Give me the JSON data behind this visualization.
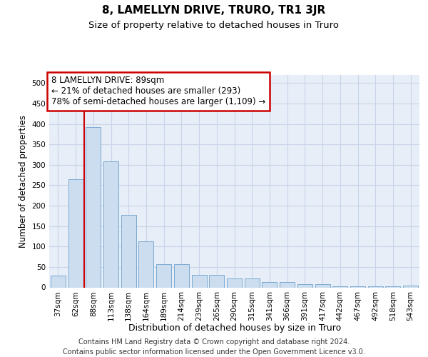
{
  "title": "8, LAMELLYN DRIVE, TRURO, TR1 3JR",
  "subtitle": "Size of property relative to detached houses in Truro",
  "xlabel": "Distribution of detached houses by size in Truro",
  "ylabel": "Number of detached properties",
  "categories": [
    "37sqm",
    "62sqm",
    "88sqm",
    "113sqm",
    "138sqm",
    "164sqm",
    "189sqm",
    "214sqm",
    "239sqm",
    "265sqm",
    "290sqm",
    "315sqm",
    "341sqm",
    "366sqm",
    "391sqm",
    "417sqm",
    "442sqm",
    "467sqm",
    "492sqm",
    "518sqm",
    "543sqm"
  ],
  "values": [
    28,
    265,
    393,
    308,
    178,
    113,
    57,
    57,
    30,
    30,
    22,
    22,
    13,
    13,
    7,
    7,
    3,
    3,
    2,
    2,
    4
  ],
  "bar_color": "#ccddf0",
  "bar_edge_color": "#7aaad0",
  "grid_color": "#c8d4e8",
  "background_color": "#e8eef8",
  "vline_x": 1.5,
  "annotation_text": "8 LAMELLYN DRIVE: 89sqm\n← 21% of detached houses are smaller (293)\n78% of semi-detached houses are larger (1,109) →",
  "annotation_box_color": "#ffffff",
  "annotation_box_edge": "#cc0000",
  "vline_color": "#cc0000",
  "footer_text": "Contains HM Land Registry data © Crown copyright and database right 2024.\nContains public sector information licensed under the Open Government Licence v3.0.",
  "title_fontsize": 11,
  "subtitle_fontsize": 9.5,
  "ylabel_fontsize": 8.5,
  "xlabel_fontsize": 9,
  "tick_fontsize": 7.5,
  "annotation_fontsize": 8.5,
  "footer_fontsize": 7,
  "ylim": [
    0,
    520
  ],
  "yticks": [
    0,
    50,
    100,
    150,
    200,
    250,
    300,
    350,
    400,
    450,
    500
  ]
}
